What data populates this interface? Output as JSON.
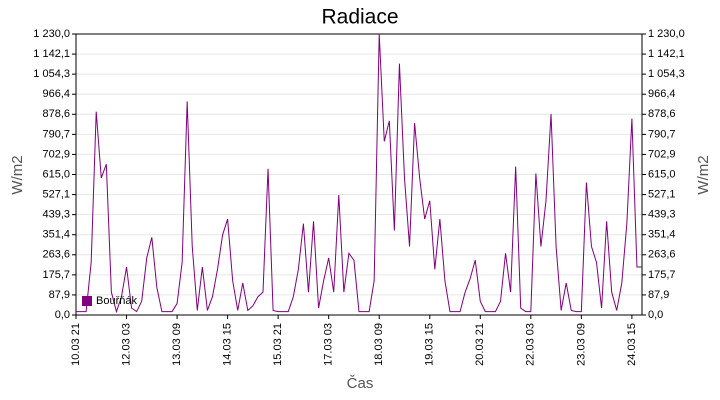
{
  "chart_data": {
    "type": "line",
    "title": "Radiace",
    "xlabel": "Čas",
    "ylabel": "W/m2",
    "y2label": "W/m2",
    "categories": [
      "10.03 21",
      null,
      null,
      null,
      null,
      null,
      null,
      null,
      null,
      null,
      "12.03 03",
      null,
      null,
      null,
      null,
      null,
      null,
      null,
      null,
      null,
      "13.03 09",
      null,
      null,
      null,
      null,
      null,
      null,
      null,
      null,
      null,
      "14.03 15",
      null,
      null,
      null,
      null,
      null,
      null,
      null,
      null,
      null,
      "15.03 21",
      null,
      null,
      null,
      null,
      null,
      null,
      null,
      null,
      null,
      "17.03 03",
      null,
      null,
      null,
      null,
      null,
      null,
      null,
      null,
      null,
      "18.03 09",
      null,
      null,
      null,
      null,
      null,
      null,
      null,
      null,
      null,
      "19.03 15",
      null,
      null,
      null,
      null,
      null,
      null,
      null,
      null,
      null,
      "20.03 21",
      null,
      null,
      null,
      null,
      null,
      null,
      null,
      null,
      null,
      "22.03 03",
      null,
      null,
      null,
      null,
      null,
      null,
      null,
      null,
      null,
      "23.03 09",
      null,
      null,
      null,
      null,
      null,
      null,
      null,
      null,
      null,
      "24.03 15",
      null,
      null
    ],
    "series": [
      {
        "name": "Bouřňák",
        "color": "#800080",
        "values": [
          15,
          15,
          15,
          230,
          890,
          600,
          660,
          100,
          15,
          80,
          210,
          30,
          15,
          60,
          250,
          340,
          120,
          15,
          15,
          15,
          50,
          230,
          935,
          300,
          20,
          210,
          20,
          80,
          200,
          350,
          420,
          150,
          20,
          140,
          20,
          40,
          80,
          100,
          640,
          20,
          15,
          15,
          15,
          80,
          200,
          400,
          100,
          410,
          30,
          150,
          250,
          100,
          525,
          100,
          270,
          240,
          15,
          15,
          15,
          150,
          1230,
          760,
          850,
          370,
          1100,
          600,
          300,
          840,
          600,
          420,
          500,
          200,
          420,
          150,
          15,
          15,
          15,
          100,
          160,
          240,
          60,
          15,
          15,
          15,
          60,
          270,
          100,
          650,
          30,
          15,
          15,
          620,
          300,
          500,
          880,
          300,
          20,
          140,
          20,
          15,
          15,
          580,
          300,
          230,
          30,
          410,
          100,
          20,
          140,
          400,
          860,
          210,
          210
        ]
      }
    ],
    "ylim": [
      0,
      1230
    ],
    "yticks": [
      {
        "value": 0,
        "label": "0,0"
      },
      {
        "value": 87.9,
        "label": "87,9"
      },
      {
        "value": 175.7,
        "label": "175,7"
      },
      {
        "value": 263.6,
        "label": "263,6"
      },
      {
        "value": 351.4,
        "label": "351,4"
      },
      {
        "value": 439.3,
        "label": "439,3"
      },
      {
        "value": 527.1,
        "label": "527,1"
      },
      {
        "value": 615,
        "label": "615,0"
      },
      {
        "value": 702.9,
        "label": "702,9"
      },
      {
        "value": 790.7,
        "label": "790,7"
      },
      {
        "value": 878.6,
        "label": "878,6"
      },
      {
        "value": 966.4,
        "label": "966,4"
      },
      {
        "value": 1054.3,
        "label": "1 054,3"
      },
      {
        "value": 1142.1,
        "label": "1 142,1"
      },
      {
        "value": 1230,
        "label": "1 230,0"
      }
    ],
    "y2lim": [
      0,
      1230
    ],
    "y2ticks": [
      {
        "value": 0,
        "label": "0,0"
      },
      {
        "value": 87.9,
        "label": "87,9"
      },
      {
        "value": 175.7,
        "label": "175,7"
      },
      {
        "value": 263.6,
        "label": "263,6"
      },
      {
        "value": 351.4,
        "label": "351,4"
      },
      {
        "value": 439.3,
        "label": "439,3"
      },
      {
        "value": 527.1,
        "label": "527,1"
      },
      {
        "value": 615,
        "label": "615,0"
      },
      {
        "value": 702.9,
        "label": "702,9"
      },
      {
        "value": 790.7,
        "label": "790,7"
      },
      {
        "value": 878.6,
        "label": "878,6"
      },
      {
        "value": 966.4,
        "label": "966,4"
      },
      {
        "value": 1054.3,
        "label": "1 054,3"
      },
      {
        "value": 1142.1,
        "label": "1 142,1"
      },
      {
        "value": 1230,
        "label": "1 230,0"
      }
    ],
    "grid": true,
    "legend": "lower left"
  }
}
